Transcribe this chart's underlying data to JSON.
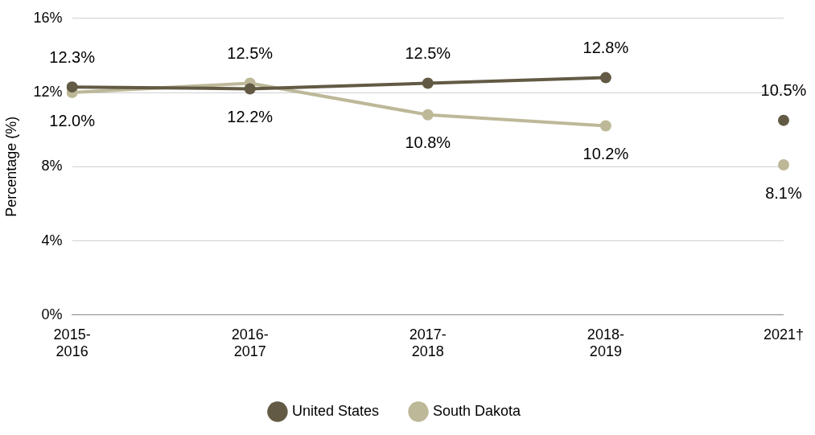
{
  "chart_data": {
    "type": "line",
    "ylabel": "Percentage (%)",
    "categories": [
      "2015-2016",
      "2016-2017",
      "2017-2018",
      "2018-2019",
      "2021†"
    ],
    "ylim": [
      0,
      16
    ],
    "yticks": [
      {
        "value": 0,
        "label": "0%"
      },
      {
        "value": 4,
        "label": "4%"
      },
      {
        "value": 8,
        "label": "8%"
      },
      {
        "value": 12,
        "label": "12%"
      },
      {
        "value": 16,
        "label": "16%"
      }
    ],
    "grid": "y",
    "legend": "bottom",
    "marker": "circle",
    "line_style": "solid",
    "series": [
      {
        "name": "United States",
        "color": "#625a44",
        "values": [
          12.3,
          12.2,
          12.5,
          12.8,
          null
        ],
        "value_labels": [
          "12.3%",
          "12.2%",
          "12.5%",
          "12.8%",
          null
        ]
      },
      {
        "name": "South Dakota",
        "color": "#bdb898",
        "values": [
          12.0,
          12.5,
          10.8,
          10.2,
          null
        ],
        "value_labels": [
          "12.0%",
          "12.5%",
          "10.8%",
          "10.2%",
          null
        ]
      },
      {
        "type": "scatter",
        "color": "#625a44",
        "values": [
          null,
          null,
          null,
          null,
          10.5
        ],
        "value_labels": [
          null,
          null,
          null,
          null,
          "10.5%"
        ]
      },
      {
        "type": "scatter",
        "color": "#bdb898",
        "values": [
          null,
          null,
          null,
          null,
          8.1
        ],
        "value_labels": [
          null,
          null,
          null,
          null,
          "8.1%"
        ]
      }
    ]
  }
}
